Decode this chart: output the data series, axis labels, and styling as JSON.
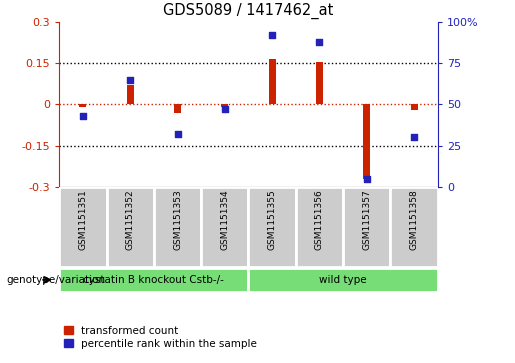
{
  "title": "GDS5089 / 1417462_at",
  "samples": [
    "GSM1151351",
    "GSM1151352",
    "GSM1151353",
    "GSM1151354",
    "GSM1151355",
    "GSM1151356",
    "GSM1151357",
    "GSM1151358"
  ],
  "red_values": [
    -0.01,
    0.07,
    -0.03,
    -0.01,
    0.165,
    0.155,
    -0.27,
    -0.02
  ],
  "blue_values": [
    43,
    65,
    32,
    47,
    92,
    88,
    5,
    30
  ],
  "groups": [
    {
      "label": "cystatin B knockout Cstb-/-",
      "n_samples": 4,
      "color": "#77dd77"
    },
    {
      "label": "wild type",
      "n_samples": 4,
      "color": "#77dd77"
    }
  ],
  "ylim_left": [
    -0.3,
    0.3
  ],
  "ylim_right": [
    0,
    100
  ],
  "yticks_left": [
    -0.3,
    -0.15,
    0,
    0.15,
    0.3
  ],
  "yticks_right": [
    0,
    25,
    50,
    75,
    100
  ],
  "hlines_dotted": [
    0.15,
    -0.15
  ],
  "hline_zero_color": "#cc2200",
  "red_color": "#cc2200",
  "blue_color": "#2222bb",
  "legend_label_red": "transformed count",
  "legend_label_blue": "percentile rank within the sample",
  "genotype_label": "genotype/variation",
  "sample_box_color": "#cccccc",
  "bar_width": 0.15
}
